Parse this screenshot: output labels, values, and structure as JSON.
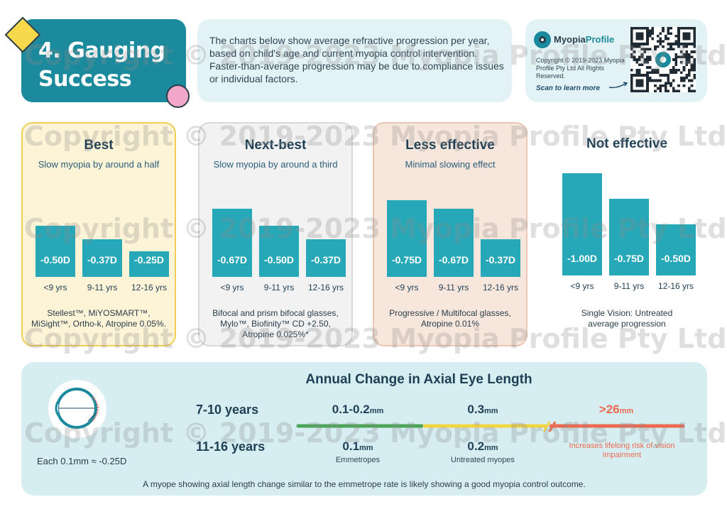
{
  "title": "4. Gauging Success",
  "intro": "The charts below show average refractive progression per year, based on child's age and current myopia control intervention. Faster-than-average progression may be due to compliance issues or individual factors.",
  "brand": {
    "name_a": "Myopia",
    "name_b": "Profile",
    "copyright": "Copyright © 2019-2023 Myopia Profile Pty Ltd All Rights Reserved.",
    "scan": "Scan to learn more",
    "accent": "#1b8a9d"
  },
  "watermark": "Copyright © 2019-2023 Myopia Profile Pty Ltd",
  "age_groups": [
    "<9 yrs",
    "9-11 yrs",
    "12-16 yrs"
  ],
  "chart_data": [
    {
      "type": "bar",
      "title": "Best",
      "subtitle": "Slow myopia by around a half",
      "categories": [
        "<9 yrs",
        "9-11 yrs",
        "12-16 yrs"
      ],
      "values": [
        -0.5,
        -0.37,
        -0.25
      ],
      "value_labels": [
        "-0.50D",
        "-0.37D",
        "-0.25D"
      ],
      "interventions": "Stellest™, MiYOSMART™, MiSight™, Ortho-k, Atropine 0.05%.",
      "colors": {
        "bar": "#27a8b8",
        "card": "#fdf3d6",
        "border": "#f2cd55"
      }
    },
    {
      "type": "bar",
      "title": "Next-best",
      "subtitle": "Slow myopia by around a third",
      "categories": [
        "<9 yrs",
        "9-11 yrs",
        "12-16 yrs"
      ],
      "values": [
        -0.67,
        -0.5,
        -0.37
      ],
      "value_labels": [
        "-0.67D",
        "-0.50D",
        "-0.37D"
      ],
      "interventions": "Bifocal and prism bifocal glasses, Mylo™, Biofinity™ CD +2.50, Atropine 0.025%*",
      "colors": {
        "bar": "#27a8b8",
        "card": "#f2f2f2",
        "border": "#d9d9d9"
      }
    },
    {
      "type": "bar",
      "title": "Less effective",
      "subtitle": "Minimal slowing effect",
      "categories": [
        "<9 yrs",
        "9-11 yrs",
        "12-16 yrs"
      ],
      "values": [
        -0.75,
        -0.67,
        -0.37
      ],
      "value_labels": [
        "-0.75D",
        "-0.67D",
        "-0.37D"
      ],
      "interventions": "Progressive / Multifocal glasses, Atropine 0.01%",
      "colors": {
        "bar": "#27a8b8",
        "card": "#f7e6dc",
        "border": "#eac7b2"
      }
    },
    {
      "type": "bar",
      "title": "Not effective",
      "subtitle": "",
      "categories": [
        "<9 yrs",
        "9-11 yrs",
        "12-16 yrs"
      ],
      "values": [
        -1.0,
        -0.75,
        -0.5
      ],
      "value_labels": [
        "-1.00D",
        "-0.75D",
        "-0.50D"
      ],
      "interventions": "Single Vision: Untreated average progression",
      "colors": {
        "bar": "#27a8b8"
      }
    }
  ],
  "axial": {
    "title": "Annual Change in Axial Eye Length",
    "eye_caption": "Each 0.1mm ≈ -0.25D",
    "rows": [
      "7-10 years",
      "11-16 years"
    ],
    "emmetropes": {
      "a": "0.1-0.2",
      "b": "0.1",
      "unit": "mm",
      "label": "Emmetropes"
    },
    "untreated": {
      "a": "0.3",
      "b": "0.2",
      "unit": "mm",
      "label": "Untreated myopes"
    },
    "risk": {
      "value": ">26",
      "unit": "mm",
      "label": "Increases lifelong risk of vision impairment"
    },
    "footnote": "A myope showing axial length change similar to the emmetrope rate is likely showing a good myopia control outcome.",
    "scale_colors": [
      "#4aa755",
      "#f0d443",
      "#ec6a50"
    ]
  }
}
